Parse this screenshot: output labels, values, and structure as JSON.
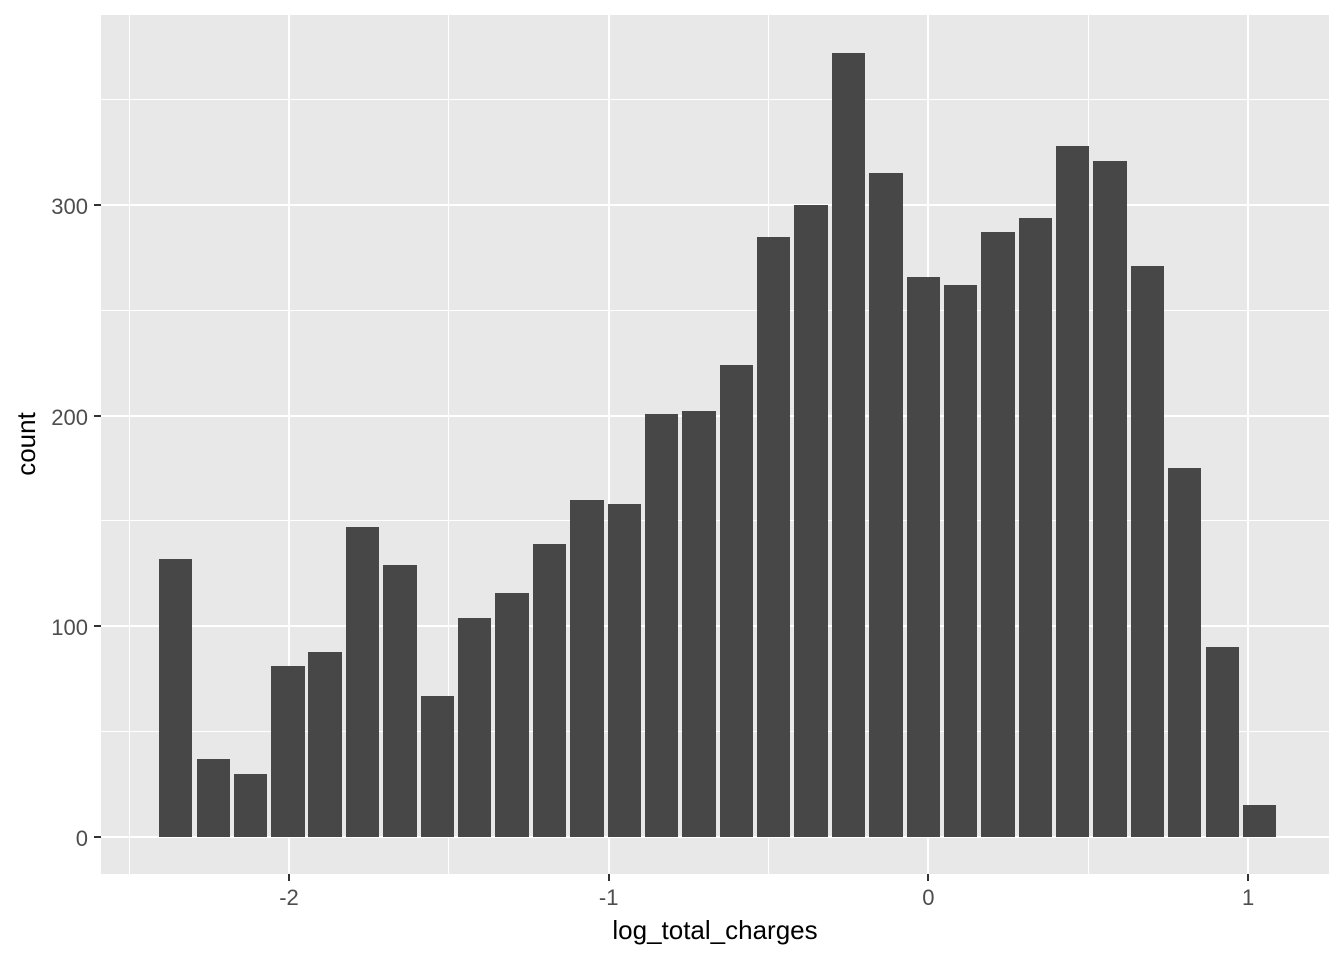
{
  "figure": {
    "background": "#FFFFFF",
    "panel_background": "#E8E8E8",
    "bar_fill": "#474747",
    "grid_color": "#FFFFFF",
    "tick_mark_color": "#333333",
    "axis_text_color": "#4D4D4D",
    "axis_title_color": "#000000"
  },
  "chart_data": {
    "type": "bar",
    "subtype": "histogram",
    "title": "",
    "xlabel": "log_total_charges",
    "ylabel": "count",
    "legend": false,
    "grid": true,
    "bin_width": 0.11689,
    "bin_start": -2.4125,
    "bin_centers": [
      -2.354,
      -2.237,
      -2.12,
      -2.003,
      -1.887,
      -1.77,
      -1.653,
      -1.536,
      -1.419,
      -1.302,
      -1.185,
      -1.068,
      -0.951,
      -0.835,
      -0.718,
      -0.601,
      -0.484,
      -0.367,
      -0.25,
      -0.133,
      -0.016,
      0.101,
      0.218,
      0.335,
      0.451,
      0.568,
      0.685,
      0.802,
      0.919,
      1.036
    ],
    "values": [
      132,
      37,
      30,
      81,
      88,
      147,
      129,
      67,
      104,
      116,
      139,
      160,
      158,
      201,
      202,
      224,
      285,
      300,
      372,
      315,
      266,
      262,
      287,
      294,
      328,
      321,
      271,
      175,
      90,
      15
    ],
    "x_ticks": [
      -2,
      -1,
      0,
      1
    ],
    "x_tick_labels": [
      "-2",
      "-1",
      "0",
      "1"
    ],
    "y_ticks": [
      0,
      100,
      200,
      300
    ],
    "y_tick_labels": [
      "0",
      "100",
      "200",
      "300"
    ],
    "x_minor_ticks": [
      -2.5,
      -1.5,
      -0.5,
      0.5
    ],
    "y_minor_ticks": [
      50,
      150,
      250,
      350
    ],
    "xlim": [
      -2.588,
      1.253
    ],
    "ylim": [
      -17.6,
      390.2
    ]
  }
}
